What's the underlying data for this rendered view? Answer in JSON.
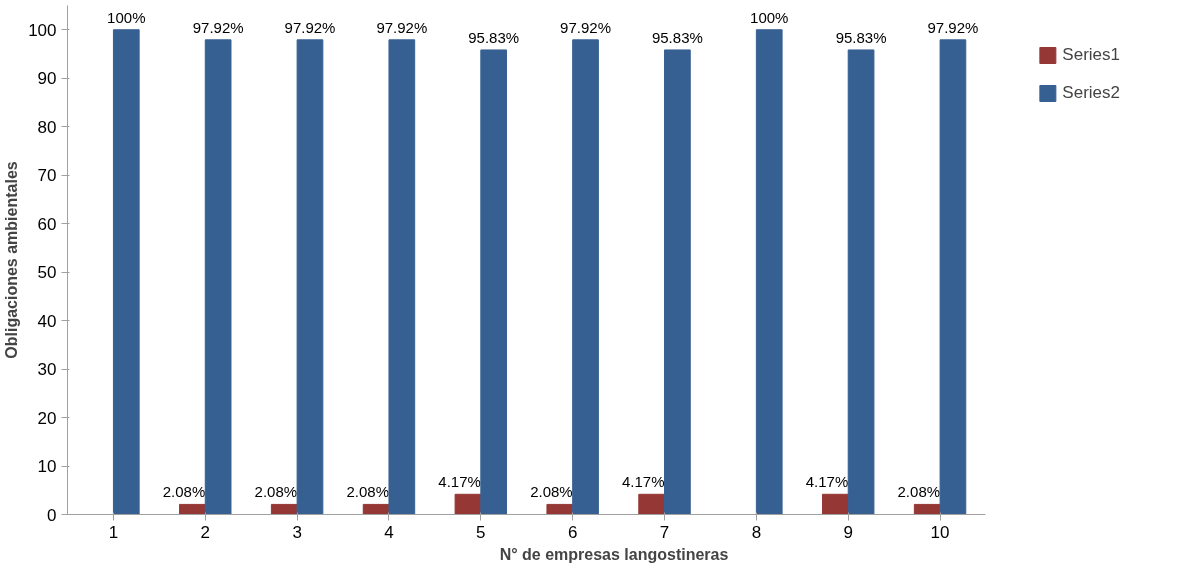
{
  "chart_data": {
    "type": "bar",
    "xlabel": "N° de empresas langostineras",
    "ylabel": "Obligaciones ambientales",
    "categories": [
      "1",
      "2",
      "3",
      "4",
      "5",
      "6",
      "7",
      "8",
      "9",
      "10"
    ],
    "series": [
      {
        "name": "Series1",
        "color": "#953735",
        "values": [
          0,
          2.08,
          2.08,
          2.08,
          4.17,
          2.08,
          4.17,
          0,
          4.17,
          2.08
        ],
        "value_labels": [
          null,
          "2.08%",
          "2.08%",
          "2.08%",
          "4.17%",
          "2.08%",
          "4.17%",
          null,
          "4.17%",
          "2.08%"
        ]
      },
      {
        "name": "Series2",
        "color": "#376092",
        "values": [
          100,
          97.92,
          97.92,
          97.92,
          95.83,
          97.92,
          95.83,
          100,
          95.83,
          97.92
        ],
        "value_labels": [
          "100%",
          "97.92%",
          "97.92%",
          "97.92%",
          "95.83%",
          "97.92%",
          "95.83%",
          "100%",
          "95.83%",
          "97.92%"
        ]
      }
    ],
    "ylim": [
      0,
      105
    ],
    "yticks": [
      0,
      10,
      20,
      30,
      40,
      50,
      60,
      70,
      80,
      90,
      100
    ],
    "grid": false,
    "legend": "right"
  }
}
